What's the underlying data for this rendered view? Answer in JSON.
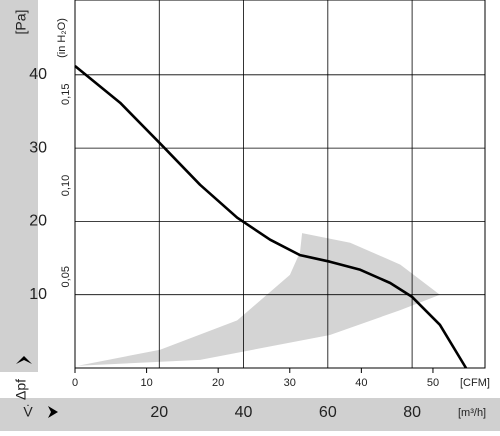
{
  "chart_data": {
    "type": "line",
    "y_label": "[Pa]",
    "y2_label": "(in H₂O)",
    "y_symbol": "Δpf",
    "x_symbol": "V̇",
    "x_label": "[m³/h]",
    "x2_label": "[CFM]",
    "xlim": [
      0,
      97.3
    ],
    "xticks": [
      20,
      40,
      60,
      80
    ],
    "x2lim": [
      0,
      57.27
    ],
    "x2ticks": [
      0,
      10,
      20,
      30,
      40,
      50
    ],
    "ylim": [
      0,
      50
    ],
    "yticks": [
      10,
      20,
      30,
      40
    ],
    "y2lim": [
      0,
      0.2008
    ],
    "y2ticks": [
      {
        "value": 0.05,
        "label": "0,05"
      },
      {
        "value": 0.1,
        "label": "0,10"
      },
      {
        "value": 0.15,
        "label": "0,15"
      }
    ],
    "grid": true,
    "region": {
      "color": "#d4d4d4",
      "x": [
        0.7,
        20.2,
        38.5,
        51,
        53.4,
        53.9,
        65.3,
        77.2,
        86.6,
        77.2,
        60.5,
        29.7
      ],
      "values": [
        0.3,
        2.5,
        6.5,
        12.7,
        15.8,
        18.4,
        17.1,
        14.1,
        10,
        7.9,
        4.5,
        1.1
      ]
    },
    "series": [
      {
        "color": "#000000",
        "x": [
          0,
          10.7,
          20.6,
          29.7,
          38.5,
          46.3,
          53.4,
          60.5,
          67.7,
          74.8,
          80,
          86.6,
          92.8
        ],
        "values": [
          41.2,
          36.2,
          30.4,
          25,
          20.5,
          17.5,
          15.4,
          14.5,
          13.4,
          11.6,
          9.7,
          5.9,
          0
        ]
      }
    ]
  }
}
